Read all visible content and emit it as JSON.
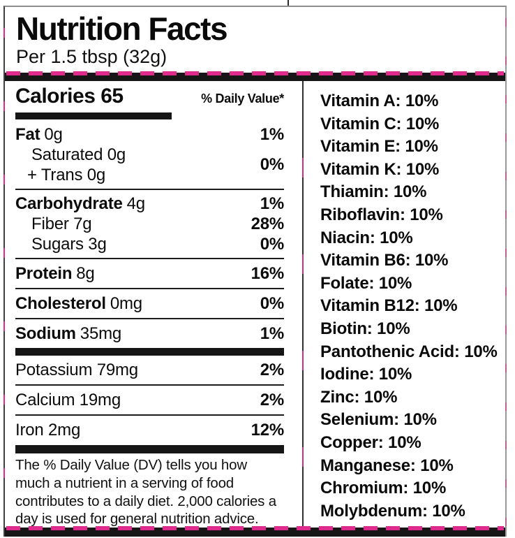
{
  "header": {
    "title": "Nutrition Facts",
    "serving": "Per 1.5 tbsp (32g)"
  },
  "panel": {
    "calories_label": "Calories 65",
    "dv_header": "% Daily Value*",
    "fat": {
      "name": "Fat",
      "amount": "0g",
      "dv": "1%"
    },
    "saturated": {
      "line1": "Saturated 0g",
      "line2": "+ Trans 0g",
      "dv": "0%"
    },
    "carbohydrate": {
      "name": "Carbohydrate",
      "amount": "4g",
      "dv": "1%"
    },
    "fiber": {
      "label": "Fiber 7g",
      "dv": "28%"
    },
    "sugars": {
      "label": "Sugars 3g",
      "dv": "0%"
    },
    "protein": {
      "name": "Protein",
      "amount": "8g",
      "dv": "16%"
    },
    "cholesterol": {
      "name": "Cholesterol",
      "amount": "0mg",
      "dv": "0%"
    },
    "sodium": {
      "name": "Sodium",
      "amount": "35mg",
      "dv": "1%"
    },
    "potassium": {
      "label": "Potassium 79mg",
      "dv": "2%"
    },
    "calcium": {
      "label": "Calcium 19mg",
      "dv": "2%"
    },
    "iron": {
      "label": "Iron 2mg",
      "dv": "12%"
    },
    "footnote": "The % Daily Value (DV) tells you how much a nutrient in a serving of food contributes to a daily diet. 2,000 calories a day is used for general nutrition advice."
  },
  "micronutrients": [
    "Vitamin A: 10%",
    "Vitamin C: 10%",
    "Vitamin E: 10%",
    "Vitamin K: 10%",
    "Thiamin: 10%",
    "Riboflavin: 10%",
    "Niacin: 10%",
    "Vitamin B6: 10%",
    "Folate: 10%",
    "Vitamin B12: 10%",
    "Biotin: 10%",
    "Pantothenic Acid: 10%",
    "Iodine: 10%",
    "Zinc: 10%",
    "Selenium: 10%",
    "Copper: 10%",
    "Manganese: 10%",
    "Chromium: 10%",
    "Molybdenum: 10%"
  ],
  "colors": {
    "accent_dash": "#de2b8c",
    "bar_black": "#161616",
    "border_gray": "#8d8d8d"
  }
}
